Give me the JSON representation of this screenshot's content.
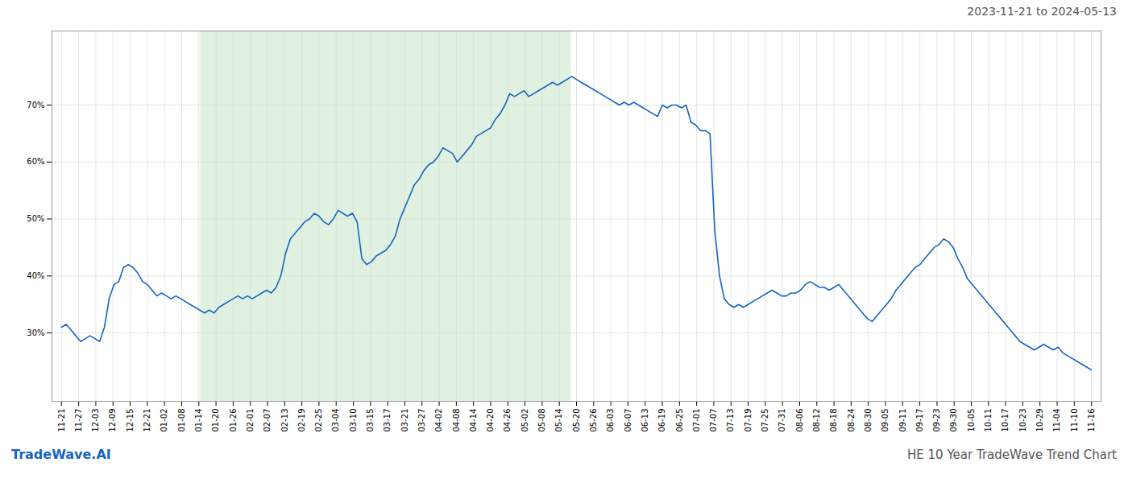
{
  "chart_data": {
    "type": "line",
    "title": "2023-11-21 to 2024-05-13",
    "annotations": [
      "TradeWave.AI",
      "HE 10 Year TradeWave Trend Chart"
    ],
    "color": "#1565c0",
    "grid": true,
    "xlim": [
      -2,
      218
    ],
    "xticks": [
      {
        "value": 0,
        "label": "11-21"
      },
      {
        "value": 3.6,
        "label": "11-27"
      },
      {
        "value": 7.2,
        "label": "12-03"
      },
      {
        "value": 10.8,
        "label": "12-09"
      },
      {
        "value": 14.4,
        "label": "12-15"
      },
      {
        "value": 18,
        "label": "12-21"
      },
      {
        "value": 21.6,
        "label": "01-02"
      },
      {
        "value": 25.2,
        "label": "01-08"
      },
      {
        "value": 28.8,
        "label": "01-14"
      },
      {
        "value": 32.4,
        "label": "01-20"
      },
      {
        "value": 36,
        "label": "01-26"
      },
      {
        "value": 39.6,
        "label": "02-01"
      },
      {
        "value": 43.2,
        "label": "02-07"
      },
      {
        "value": 46.8,
        "label": "02-13"
      },
      {
        "value": 50.4,
        "label": "02-19"
      },
      {
        "value": 54,
        "label": "02-25"
      },
      {
        "value": 57.6,
        "label": "03-04"
      },
      {
        "value": 61.2,
        "label": "03-10"
      },
      {
        "value": 64.8,
        "label": "03-15"
      },
      {
        "value": 68.4,
        "label": "03-17"
      },
      {
        "value": 72,
        "label": "03-21"
      },
      {
        "value": 75.6,
        "label": "03-27"
      },
      {
        "value": 79.2,
        "label": "04-02"
      },
      {
        "value": 82.8,
        "label": "04-08"
      },
      {
        "value": 86.4,
        "label": "04-14"
      },
      {
        "value": 90,
        "label": "04-20"
      },
      {
        "value": 93.6,
        "label": "04-26"
      },
      {
        "value": 97.2,
        "label": "05-02"
      },
      {
        "value": 100.8,
        "label": "05-08"
      },
      {
        "value": 104.4,
        "label": "05-14"
      },
      {
        "value": 108,
        "label": "05-20"
      },
      {
        "value": 111.6,
        "label": "05-26"
      },
      {
        "value": 115.2,
        "label": "06-03"
      },
      {
        "value": 118.8,
        "label": "06-07"
      },
      {
        "value": 122.4,
        "label": "06-13"
      },
      {
        "value": 126,
        "label": "06-19"
      },
      {
        "value": 129.6,
        "label": "06-25"
      },
      {
        "value": 133.2,
        "label": "07-01"
      },
      {
        "value": 136.8,
        "label": "07-07"
      },
      {
        "value": 140.4,
        "label": "07-13"
      },
      {
        "value": 144,
        "label": "07-19"
      },
      {
        "value": 147.6,
        "label": "07-25"
      },
      {
        "value": 151.2,
        "label": "07-31"
      },
      {
        "value": 154.8,
        "label": "08-06"
      },
      {
        "value": 158.4,
        "label": "08-12"
      },
      {
        "value": 162,
        "label": "08-18"
      },
      {
        "value": 165.6,
        "label": "08-24"
      },
      {
        "value": 169.2,
        "label": "08-30"
      },
      {
        "value": 172.8,
        "label": "09-05"
      },
      {
        "value": 176.4,
        "label": "09-11"
      },
      {
        "value": 180,
        "label": "09-17"
      },
      {
        "value": 183.6,
        "label": "09-23"
      },
      {
        "value": 187.2,
        "label": "09-30"
      },
      {
        "value": 190.8,
        "label": "10-05"
      },
      {
        "value": 194.4,
        "label": "10-11"
      },
      {
        "value": 198,
        "label": "10-17"
      },
      {
        "value": 201.6,
        "label": "10-23"
      },
      {
        "value": 205.2,
        "label": "10-29"
      },
      {
        "value": 208.8,
        "label": "11-04"
      },
      {
        "value": 212.4,
        "label": "11-10"
      },
      {
        "value": 216,
        "label": "11-16"
      }
    ],
    "ylim": [
      18,
      83
    ],
    "yticks": [
      {
        "value": 30,
        "label": "30%"
      },
      {
        "value": 40,
        "label": "40%"
      },
      {
        "value": 50,
        "label": "50%"
      },
      {
        "value": 60,
        "label": "60%"
      },
      {
        "value": 70,
        "label": "70%"
      }
    ],
    "shaded_region": {
      "x": [
        29.16,
        106.92
      ],
      "color": "#c8e6c9"
    },
    "values": [
      31.0,
      31.5,
      30.5,
      29.5,
      28.5,
      29.0,
      29.5,
      29.0,
      28.5,
      31.0,
      36.0,
      38.5,
      39.0,
      41.5,
      42.0,
      41.5,
      40.5,
      39.0,
      38.5,
      37.5,
      36.5,
      37.0,
      36.5,
      36.0,
      36.5,
      36.0,
      35.5,
      35.0,
      34.5,
      34.0,
      33.5,
      34.0,
      33.5,
      34.5,
      35.0,
      35.5,
      36.0,
      36.5,
      36.0,
      36.5,
      36.0,
      36.5,
      37.0,
      37.5,
      37.0,
      38.0,
      40.0,
      44.0,
      46.5,
      47.5,
      48.5,
      49.5,
      50.0,
      51.0,
      50.5,
      49.5,
      49.0,
      50.0,
      51.5,
      51.0,
      50.5,
      51.0,
      49.5,
      43.0,
      42.0,
      42.5,
      43.5,
      44.0,
      44.5,
      45.5,
      47.0,
      50.0,
      52.0,
      54.0,
      56.0,
      57.0,
      58.5,
      59.5,
      60.0,
      61.0,
      62.5,
      62.0,
      61.5,
      60.0,
      61.0,
      62.0,
      63.0,
      64.5,
      65.0,
      65.5,
      66.0,
      67.5,
      68.5,
      70.0,
      72.0,
      71.5,
      72.0,
      72.5,
      71.5,
      72.0,
      72.5,
      73.0,
      73.5,
      74.0,
      73.5,
      74.0,
      74.5,
      75.0,
      74.5,
      74.0,
      73.5,
      73.0,
      72.5,
      72.0,
      71.5,
      71.0,
      70.5,
      70.0,
      70.5,
      70.0,
      70.5,
      70.0,
      69.5,
      69.0,
      68.5,
      68.0,
      70.0,
      69.5,
      70.0,
      70.0,
      69.5,
      70.0,
      67.0,
      66.5,
      65.5,
      65.5,
      65.0,
      48.0,
      40.0,
      36.0,
      35.0,
      34.5,
      35.0,
      34.5,
      35.0,
      35.5,
      36.0,
      36.5,
      37.0,
      37.5,
      37.0,
      36.5,
      36.5,
      37.0,
      37.0,
      37.5,
      38.5,
      39.0,
      38.5,
      38.0,
      38.0,
      37.5,
      38.0,
      38.5,
      37.5,
      36.5,
      35.5,
      34.5,
      33.5,
      32.5,
      32.0,
      33.0,
      34.0,
      35.0,
      36.0,
      37.5,
      38.5,
      39.5,
      40.5,
      41.5,
      42.0,
      43.0,
      44.0,
      45.0,
      45.5,
      46.5,
      46.0,
      45.0,
      43.0,
      41.5,
      39.5,
      38.5,
      37.5,
      36.5,
      35.5,
      34.5,
      33.5,
      32.5,
      31.5,
      30.5,
      29.5,
      28.5,
      28.0,
      27.5,
      27.0,
      27.5,
      28.0,
      27.5,
      27.0,
      27.5,
      26.5,
      26.0,
      25.5,
      25.0,
      24.5,
      24.0,
      23.5
    ]
  }
}
